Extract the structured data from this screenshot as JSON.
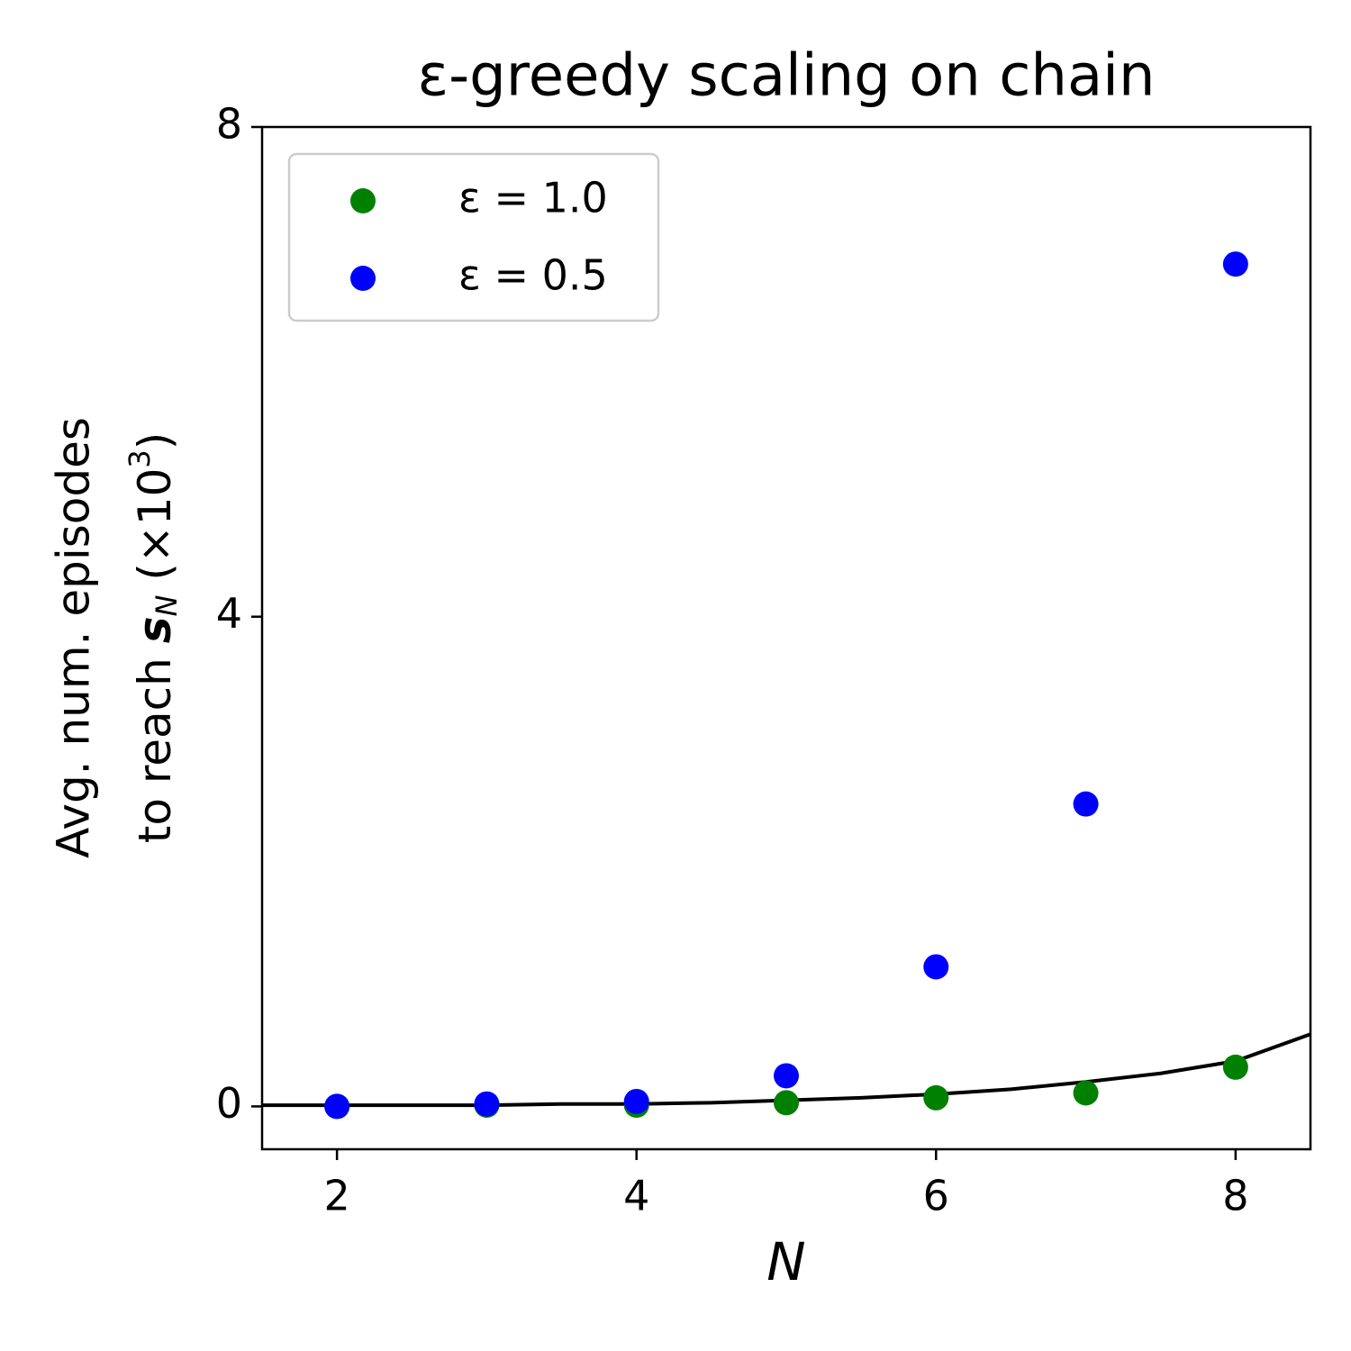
{
  "chart_data": {
    "type": "scatter",
    "title": "ε-greedy scaling on chain",
    "xlabel": "N",
    "ylabel": {
      "line1": "Avg. num. episodes",
      "line2": [
        "to reach ",
        "s",
        "N",
        " (×10",
        "3",
        ")"
      ]
    },
    "x": [
      2,
      3,
      4,
      5,
      6,
      7,
      8
    ],
    "series": [
      {
        "name": "ε = 1.0",
        "color": "#008000",
        "values": [
          0.0,
          0.01,
          0.01,
          0.03,
          0.07,
          0.11,
          0.32
        ]
      },
      {
        "name": "ε = 0.5",
        "color": "#0000ff",
        "values": [
          0.0,
          0.02,
          0.04,
          0.25,
          1.14,
          2.47,
          6.88
        ]
      }
    ],
    "curve": {
      "color": "#000000",
      "x": [
        1.5,
        2,
        2.5,
        3,
        3.5,
        4,
        4.5,
        5,
        5.5,
        6,
        6.5,
        7,
        7.5,
        8,
        8.5
      ],
      "values": [
        0.01,
        0.01,
        0.01,
        0.01,
        0.02,
        0.02,
        0.03,
        0.05,
        0.07,
        0.1,
        0.14,
        0.2,
        0.27,
        0.37,
        0.59
      ]
    },
    "xlim": [
      1.5,
      8.5
    ],
    "ylim": [
      -0.35,
      8
    ],
    "xticks": [
      2,
      4,
      6,
      8
    ],
    "yticks": [
      0,
      4,
      8
    ],
    "legend": "upper left"
  }
}
